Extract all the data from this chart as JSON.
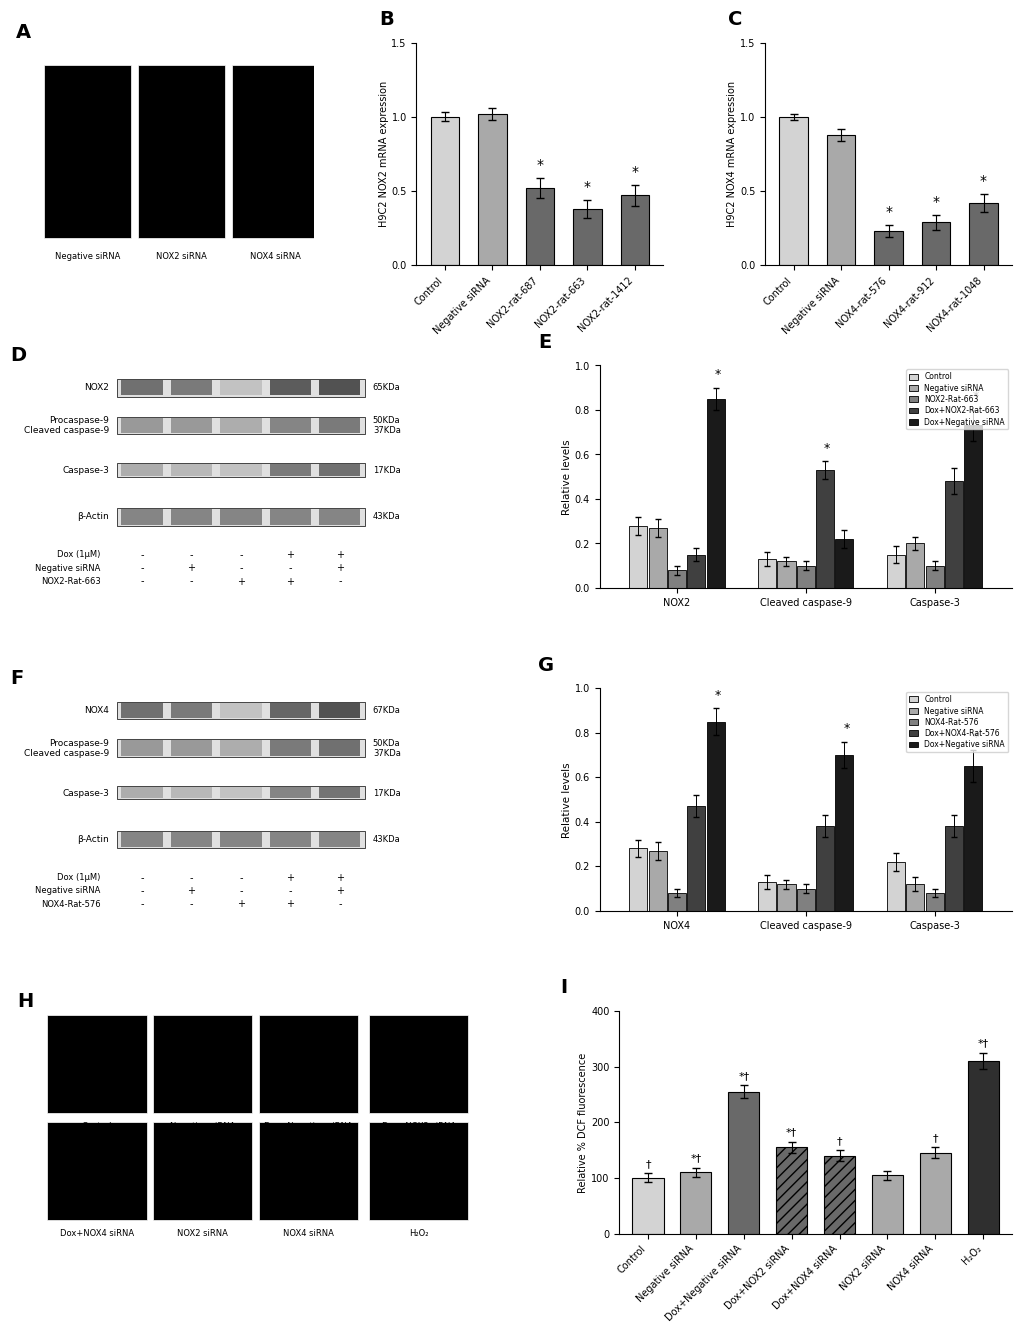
{
  "panel_B": {
    "categories": [
      "Control",
      "Negative siRNA",
      "NOX2-rat-687",
      "NOX2-rat-663",
      "NOX2-rat-1412"
    ],
    "values": [
      1.0,
      1.02,
      0.52,
      0.38,
      0.47
    ],
    "errors": [
      0.03,
      0.04,
      0.07,
      0.06,
      0.07
    ],
    "colors": [
      "#d3d3d3",
      "#a9a9a9",
      "#696969",
      "#696969",
      "#696969"
    ],
    "ylabel": "H9C2 NOX2 mRNA expression",
    "ylim": [
      0,
      1.5
    ],
    "yticks": [
      0.0,
      0.5,
      1.0,
      1.5
    ],
    "sig_bars": [
      2,
      3,
      4
    ]
  },
  "panel_C": {
    "categories": [
      "Control",
      "Negative siRNA",
      "NOX4-rat-576",
      "NOX4-rat-912",
      "NOX4-rat-1048"
    ],
    "values": [
      1.0,
      0.88,
      0.23,
      0.29,
      0.42
    ],
    "errors": [
      0.02,
      0.04,
      0.04,
      0.05,
      0.06
    ],
    "colors": [
      "#d3d3d3",
      "#a9a9a9",
      "#696969",
      "#696969",
      "#696969"
    ],
    "ylabel": "H9C2 NOX4 mRNA expression",
    "ylim": [
      0,
      1.5
    ],
    "yticks": [
      0.0,
      0.5,
      1.0,
      1.5
    ],
    "sig_bars": [
      2,
      3,
      4
    ]
  },
  "panel_E": {
    "groups": [
      "NOX2",
      "Cleaved caspase-9",
      "Caspase-3"
    ],
    "series": [
      "Control",
      "Negative siRNA",
      "NOX2-Rat-663",
      "Dox+NOX2-Rat-663",
      "Dox+Negative siRNA"
    ],
    "values": [
      [
        0.28,
        0.27,
        0.08,
        0.15,
        0.85
      ],
      [
        0.13,
        0.12,
        0.1,
        0.53,
        0.22
      ],
      [
        0.15,
        0.2,
        0.1,
        0.48,
        0.73
      ]
    ],
    "errors": [
      [
        0.04,
        0.04,
        0.02,
        0.03,
        0.05
      ],
      [
        0.03,
        0.02,
        0.02,
        0.04,
        0.04
      ],
      [
        0.04,
        0.03,
        0.02,
        0.06,
        0.07
      ]
    ],
    "colors": [
      "#d3d3d3",
      "#a9a9a9",
      "#808080",
      "#404040",
      "#1a1a1a"
    ],
    "ylabel": "Relative levels",
    "ylim": [
      0,
      1.0
    ],
    "yticks": [
      0.0,
      0.2,
      0.4,
      0.6,
      0.8,
      1.0
    ],
    "legend_labels": [
      "Control",
      "Negative siRNA",
      "NOX2-Rat-663",
      "Dox+NOX2-Rat-663",
      "Dox+Negative siRNA"
    ]
  },
  "panel_G": {
    "groups": [
      "NOX4",
      "Cleaved caspase-9",
      "Caspase-3"
    ],
    "series": [
      "Control",
      "Negative siRNA",
      "NOX4-Rat-576",
      "Dox+NOX4-Rat-576",
      "Dox+Negative siRNA"
    ],
    "values": [
      [
        0.28,
        0.27,
        0.08,
        0.47,
        0.85
      ],
      [
        0.13,
        0.12,
        0.1,
        0.38,
        0.7
      ],
      [
        0.22,
        0.12,
        0.08,
        0.38,
        0.65
      ]
    ],
    "errors": [
      [
        0.04,
        0.04,
        0.02,
        0.05,
        0.06
      ],
      [
        0.03,
        0.02,
        0.02,
        0.05,
        0.06
      ],
      [
        0.04,
        0.03,
        0.02,
        0.05,
        0.07
      ]
    ],
    "colors": [
      "#d3d3d3",
      "#a9a9a9",
      "#808080",
      "#404040",
      "#1a1a1a"
    ],
    "ylabel": "Relative levels",
    "ylim": [
      0,
      1.0
    ],
    "yticks": [
      0.0,
      0.2,
      0.4,
      0.6,
      0.8,
      1.0
    ],
    "legend_labels": [
      "Control",
      "Negative siRNA",
      "NOX4-Rat-576",
      "Dox+NOX4-Rat-576",
      "Dox+Negative siRNA"
    ]
  },
  "panel_I": {
    "categories": [
      "Control",
      "Negative siRNA",
      "Dox+Negative siRNA",
      "Dox+NOX2 siRNA",
      "Dox+NOX4 siRNA",
      "NOX2 siRNA",
      "NOX4 siRNA",
      "H₂O₂"
    ],
    "values": [
      100,
      110,
      255,
      155,
      140,
      105,
      145,
      310
    ],
    "errors": [
      8,
      8,
      12,
      10,
      10,
      8,
      10,
      15
    ],
    "colors": [
      "#d3d3d3",
      "#a9a9a9",
      "#696969",
      "#696969",
      "#696969",
      "#a9a9a9",
      "#a9a9a9",
      "#2f2f2f"
    ],
    "hatches": [
      "",
      "",
      "",
      "///",
      "///",
      "",
      "",
      ""
    ],
    "ylabel": "Relative % DCF fluorescence",
    "ylim": [
      0,
      400
    ],
    "yticks": [
      0,
      100,
      200,
      300,
      400
    ],
    "sig_marks": [
      "†",
      "*†",
      "*†",
      "*†",
      "†",
      "*†"
    ],
    "sig_positions": [
      1,
      2,
      3,
      4,
      5,
      7
    ]
  }
}
